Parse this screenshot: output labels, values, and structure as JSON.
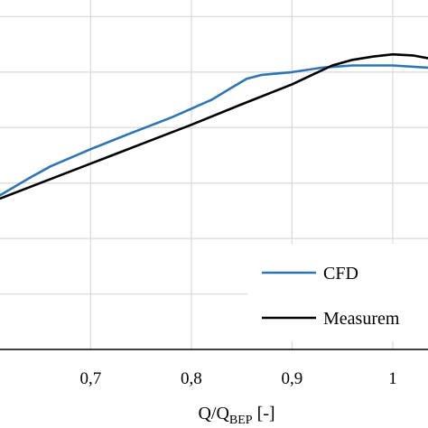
{
  "chart_data": {
    "type": "line",
    "xlabel_main": "Q/Q",
    "xlabel_sub": "BEP",
    "xlabel_unit": " [-]",
    "ylabel": "",
    "xlim": [
      0.61,
      1.035
    ],
    "ylim": [
      0,
      6.3
    ],
    "x_ticks": [
      0.7,
      0.8,
      0.9,
      1.0
    ],
    "x_tick_labels": [
      "0,7",
      "0,8",
      "0,9",
      "1"
    ],
    "y_gridlines": [
      1,
      2,
      3,
      4,
      5,
      6
    ],
    "grid": true,
    "legend_position": "bottom-right",
    "series": [
      {
        "name": "CFD",
        "color": "#2e75b6",
        "x": [
          0.61,
          0.64,
          0.66,
          0.7,
          0.74,
          0.78,
          0.82,
          0.84,
          0.855,
          0.87,
          0.9,
          0.93,
          0.96,
          1.0,
          1.035
        ],
        "y": [
          2.78,
          3.1,
          3.3,
          3.61,
          3.9,
          4.18,
          4.5,
          4.72,
          4.88,
          4.95,
          5.0,
          5.08,
          5.12,
          5.12,
          5.08
        ]
      },
      {
        "name": "Measurem",
        "color": "#000000",
        "x": [
          0.61,
          0.65,
          0.7,
          0.75,
          0.8,
          0.85,
          0.9,
          0.92,
          0.94,
          0.96,
          0.98,
          1.0,
          1.02,
          1.035
        ],
        "y": [
          2.72,
          3.0,
          3.35,
          3.7,
          4.05,
          4.42,
          4.78,
          4.95,
          5.12,
          5.22,
          5.28,
          5.32,
          5.3,
          5.25
        ]
      }
    ]
  }
}
